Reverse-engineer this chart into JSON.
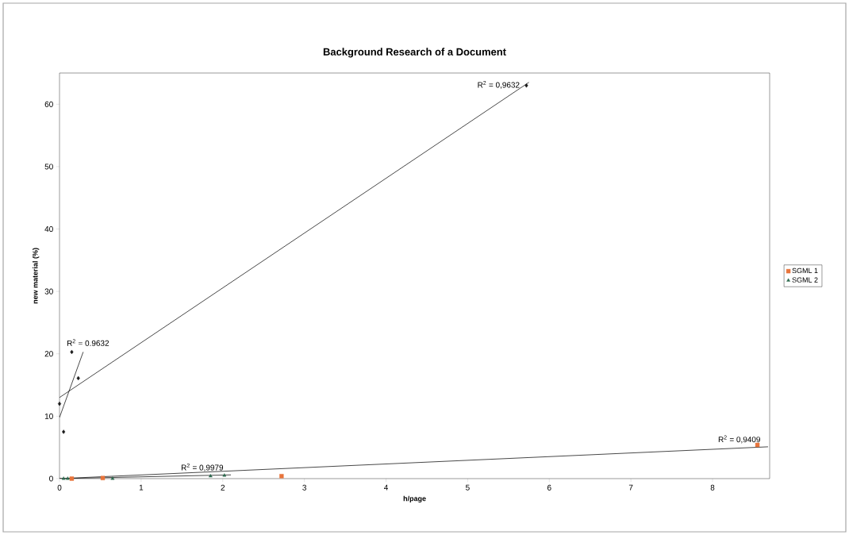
{
  "chart_data": {
    "type": "scatter",
    "title": "Background Research of a Document",
    "xlabel": "h/page",
    "ylabel": "new material (%)",
    "xlim": [
      0,
      8.7
    ],
    "ylim": [
      0,
      65
    ],
    "xticks": [
      0,
      1,
      2,
      3,
      4,
      5,
      6,
      7,
      8
    ],
    "yticks": [
      0,
      10,
      20,
      30,
      40,
      50,
      60
    ],
    "grid": false,
    "legend": "right",
    "series": [
      {
        "name": "SGML 1",
        "color": "#e8743b",
        "marker": "square",
        "x": [
          0.15,
          0.53,
          2.72,
          8.55
        ],
        "values": [
          0,
          0.1,
          0.4,
          5.4
        ]
      },
      {
        "name": "SGML 2",
        "color": "#2e6b4f",
        "marker": "triangle",
        "x": [
          0.05,
          0.1,
          0.65,
          1.85,
          2.02
        ],
        "values": [
          0,
          0,
          0,
          0.4,
          0.5
        ]
      },
      {
        "color": "#1a1a1a",
        "marker": "diamond",
        "x": [
          0.0,
          0.05,
          0.15,
          0.23,
          5.72
        ],
        "values": [
          12,
          7.5,
          20.3,
          16.1,
          63
        ]
      },
      {
        "type": "line",
        "color": "#1a1a1a",
        "marker": "none",
        "x": [
          0,
          5.75
        ],
        "values": [
          13,
          63.5
        ]
      },
      {
        "type": "line",
        "color": "#1a1a1a",
        "marker": "none",
        "x": [
          0,
          0.29
        ],
        "values": [
          9.8,
          20.3
        ]
      },
      {
        "type": "line",
        "color": "#1a1a1a",
        "marker": "none",
        "x": [
          0,
          2.1
        ],
        "values": [
          0,
          0.6
        ]
      },
      {
        "type": "line",
        "color": "#1a1a1a",
        "marker": "none",
        "x": [
          0,
          8.68
        ],
        "values": [
          0,
          5.1
        ]
      }
    ],
    "annotations": [
      "R$^{2}$ = 0,9632",
      "R$^{2}$ = 0.9632",
      "R$^{2}$ = 0,9979",
      "R$^{2}$ = 0,9409"
    ]
  }
}
